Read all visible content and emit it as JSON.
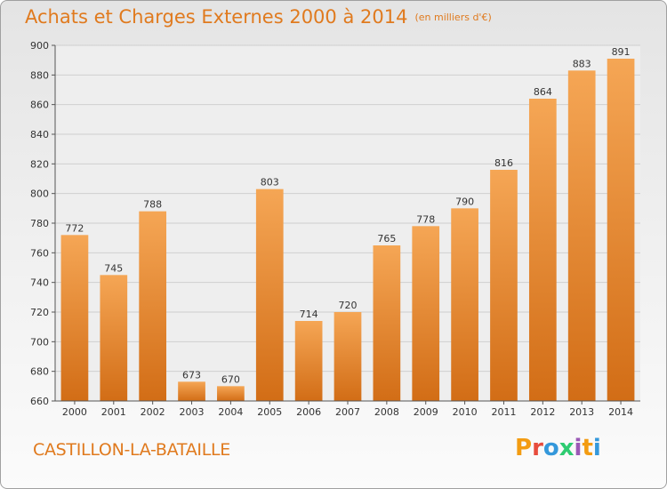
{
  "header": {
    "title": "Achats et Charges Externes 2000 à 2014",
    "unit": "(en milliers d'€)"
  },
  "footer": {
    "city": "CASTILLON-LA-BATAILLE",
    "logo": "Proxiti",
    "logo_colors": [
      "#f39c12",
      "#e74c3c",
      "#3498db",
      "#2ecc71",
      "#9b59b6",
      "#f39c12",
      "#3498db"
    ]
  },
  "chart_data": {
    "type": "bar",
    "categories": [
      "2000",
      "2001",
      "2002",
      "2003",
      "2004",
      "2005",
      "2006",
      "2007",
      "2008",
      "2009",
      "2010",
      "2011",
      "2012",
      "2013",
      "2014"
    ],
    "values": [
      772,
      745,
      788,
      673,
      670,
      803,
      714,
      720,
      765,
      778,
      790,
      816,
      864,
      883,
      891
    ],
    "ylim": [
      660,
      900
    ],
    "yticks": [
      660,
      680,
      700,
      720,
      740,
      760,
      780,
      800,
      820,
      840,
      860,
      880,
      900
    ],
    "grid": true,
    "bar_color": "#f0983e",
    "bar_color_dark": "#d9741c"
  }
}
